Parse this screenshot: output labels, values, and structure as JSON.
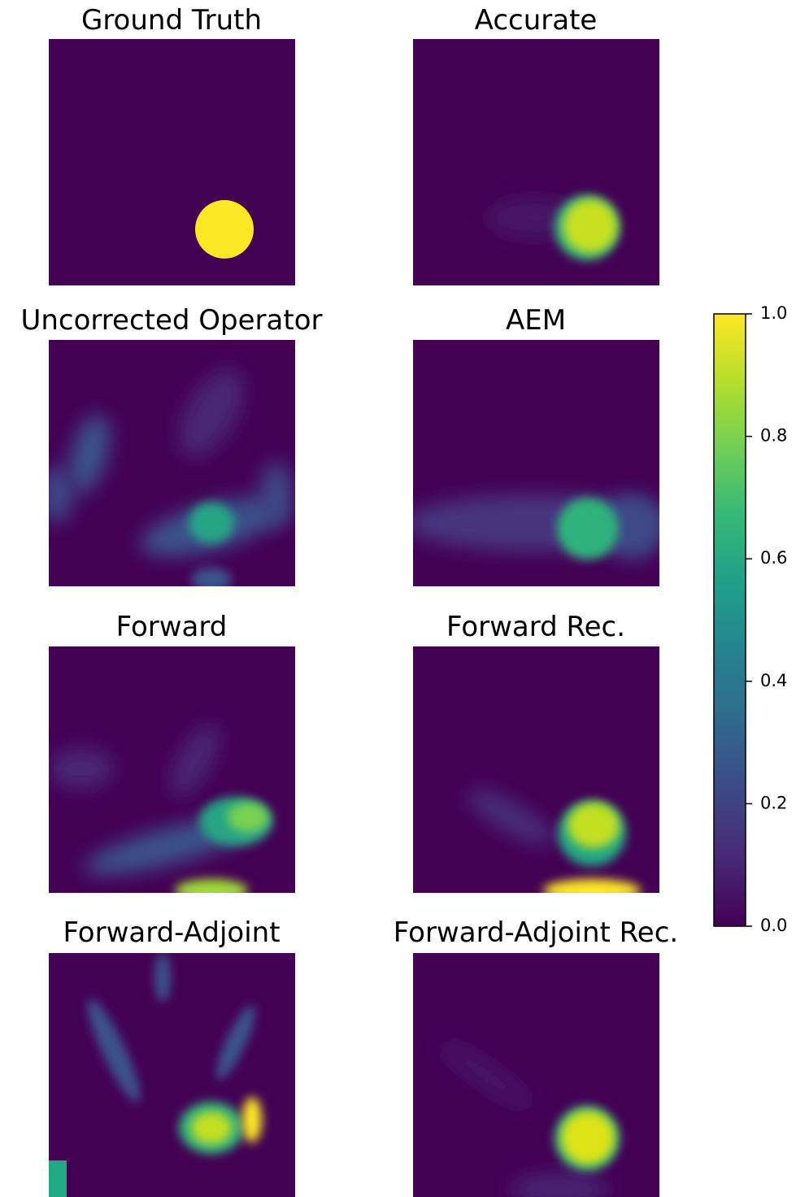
{
  "chart_data": {
    "type": "heatmap",
    "panels": [
      {
        "title": "Ground Truth"
      },
      {
        "title": "Accurate"
      },
      {
        "title": "Uncorrected Operator"
      },
      {
        "title": "AEM"
      },
      {
        "title": "Forward"
      },
      {
        "title": "Forward Rec."
      },
      {
        "title": "Forward-Adjoint"
      },
      {
        "title": "Forward-Adjoint Rec."
      }
    ],
    "colormap": "viridis",
    "colorbar": {
      "lim": [
        0,
        1
      ],
      "ticks": [
        {
          "value": 0,
          "label": "0.0"
        },
        0.2,
        0.4,
        0.6,
        0.8,
        {
          "value": 1,
          "label": "1.0"
        }
      ]
    }
  }
}
